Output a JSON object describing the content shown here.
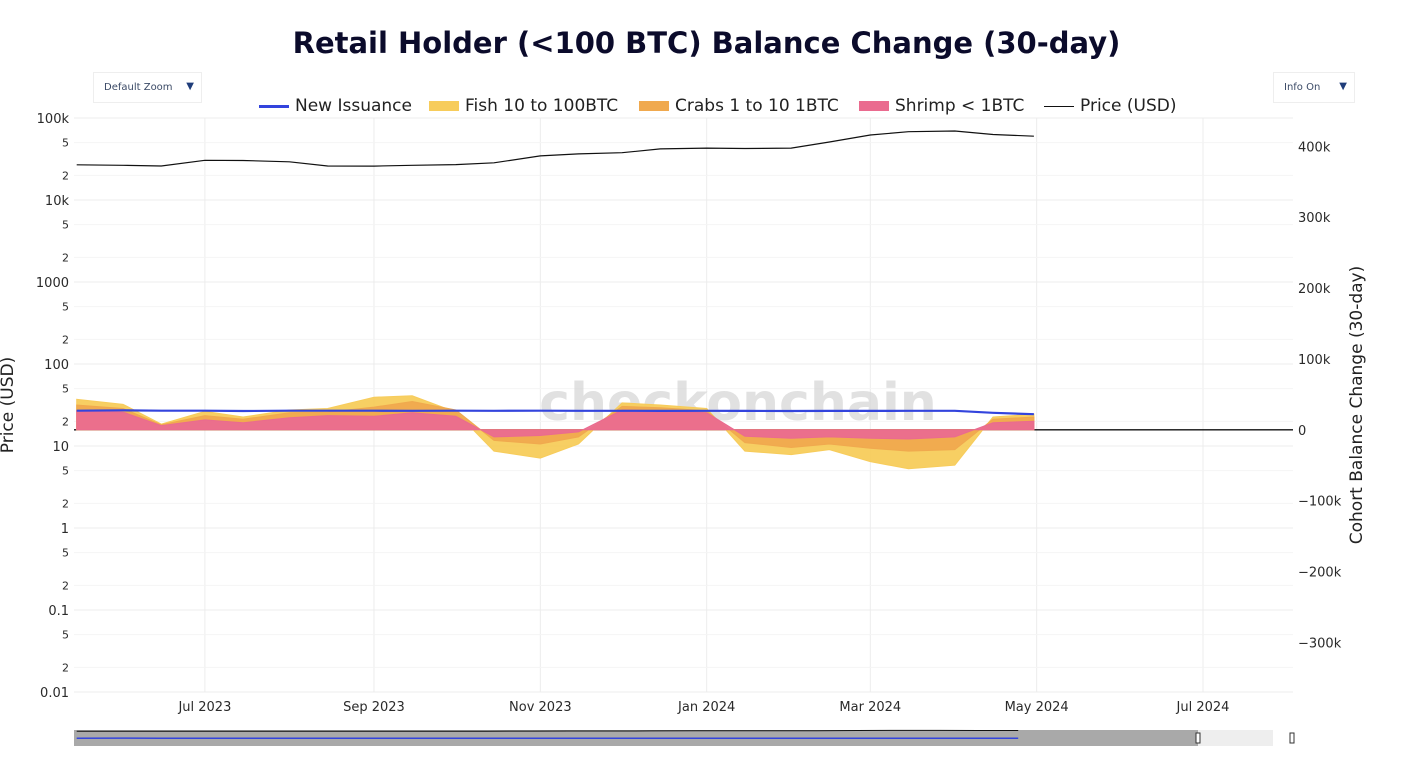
{
  "title": "Retail Holder (<100 BTC) Balance Change (30-day)",
  "zoom_dropdown": {
    "label": "Default Zoom",
    "arrow_icon": "triangle-down-icon"
  },
  "info_dropdown": {
    "label": "Info On",
    "arrow_icon": "triangle-down-icon"
  },
  "watermark": "checkonchain",
  "legend": [
    {
      "name": "New Issuance",
      "color": "#3344dd",
      "kind": "line"
    },
    {
      "name": "Fish 10 to 100BTC",
      "color": "#f7cc5b",
      "kind": "fill"
    },
    {
      "name": "Crabs 1 to 10 1BTC",
      "color": "#f0a94e",
      "kind": "fill"
    },
    {
      "name": "Shrimp < 1BTC",
      "color": "#ea6b8f",
      "kind": "fill"
    },
    {
      "name": "Price (USD)",
      "color": "#111111",
      "kind": "line"
    }
  ],
  "chart_data": {
    "type": "area",
    "title": "Retail Holder (<100 BTC) Balance Change (30-day)",
    "x_tick_labels": [
      "Jul 2023",
      "Sep 2023",
      "Nov 2023",
      "Jan 2024",
      "Mar 2024",
      "May 2024",
      "Jul 2024"
    ],
    "x_tick_dates": [
      "2023-07-01",
      "2023-09-01",
      "2023-11-01",
      "2024-01-01",
      "2024-03-01",
      "2024-05-01",
      "2024-07-01"
    ],
    "x_range": [
      "2023-05-14",
      "2024-08-03"
    ],
    "y_left": {
      "label": "Price (USD)",
      "scale": "log",
      "range": [
        0.01,
        100000
      ],
      "major_ticks": [
        "100k",
        "10k",
        "1000",
        "100",
        "10",
        "1",
        "0.1",
        "0.01"
      ],
      "minor_tick_labels": [
        "5",
        "2"
      ]
    },
    "y_right": {
      "label": "Cohort Balance Change (30-day)",
      "scale": "linear",
      "range": [
        -370000,
        440000
      ],
      "tick_values": [
        400000,
        300000,
        200000,
        100000,
        0,
        -100000,
        -200000,
        -300000
      ],
      "tick_labels": [
        "400k",
        "300k",
        "200k",
        "100k",
        "0",
        "−100k",
        "−200k",
        "−300k"
      ]
    },
    "grid": true,
    "legend_position": "top",
    "x": [
      "2023-05-15",
      "2023-06-01",
      "2023-06-15",
      "2023-07-01",
      "2023-07-15",
      "2023-08-01",
      "2023-08-15",
      "2023-09-01",
      "2023-09-15",
      "2023-10-01",
      "2023-10-15",
      "2023-11-01",
      "2023-11-15",
      "2023-12-01",
      "2023-12-15",
      "2024-01-01",
      "2024-01-15",
      "2024-02-01",
      "2024-02-15",
      "2024-03-01",
      "2024-03-15",
      "2024-04-01",
      "2024-04-15",
      "2024-04-30"
    ],
    "series": [
      {
        "name": "Shrimp < 1BTC",
        "axis": "right",
        "values": [
          27000,
          25000,
          6000,
          14000,
          10000,
          17000,
          20000,
          19000,
          24000,
          19000,
          -10000,
          -8000,
          -3000,
          28000,
          27000,
          24000,
          -9000,
          -12000,
          -10000,
          -12000,
          -13000,
          -10000,
          10000,
          12000
        ]
      },
      {
        "name": "Crabs 1 to 10 1BTC",
        "axis": "right",
        "values": [
          35000,
          30000,
          7000,
          20000,
          15000,
          24000,
          25000,
          32000,
          40000,
          28000,
          -15000,
          -20000,
          -10000,
          33000,
          31000,
          27000,
          -18000,
          -25000,
          -20000,
          -26000,
          -30000,
          -28000,
          15000,
          18000
        ]
      },
      {
        "name": "Fish 10 to 100BTC",
        "axis": "right",
        "values": [
          43000,
          36000,
          8000,
          26000,
          18000,
          28000,
          30000,
          46000,
          48000,
          25000,
          -30000,
          -40000,
          -20000,
          38000,
          35000,
          30000,
          -30000,
          -35000,
          -28000,
          -45000,
          -55000,
          -50000,
          18000,
          22000
        ]
      },
      {
        "name": "New Issuance",
        "axis": "right",
        "values": [
          27000,
          27500,
          27000,
          27000,
          26500,
          27000,
          27000,
          27000,
          26800,
          27000,
          26800,
          26900,
          26800,
          26800,
          26700,
          26800,
          26700,
          26600,
          26700,
          26700,
          26800,
          26800,
          24000,
          22000
        ]
      },
      {
        "name": "Price (USD)",
        "axis": "left",
        "values": [
          26900,
          26500,
          26000,
          30500,
          30300,
          29200,
          26000,
          25900,
          26500,
          27000,
          28400,
          34500,
          36500,
          37700,
          42000,
          43000,
          42500,
          43000,
          51000,
          62000,
          68000,
          69500,
          63000,
          60000
        ]
      }
    ]
  }
}
